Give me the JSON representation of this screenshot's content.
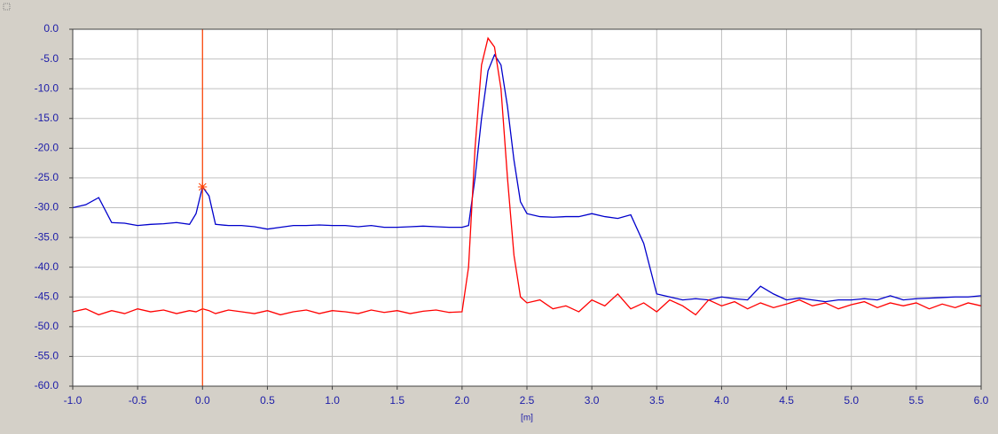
{
  "chart_data": {
    "type": "line",
    "x_label": "[m]",
    "x": [
      -1,
      -0.9,
      -0.8,
      -0.7,
      -0.6,
      -0.5,
      -0.4,
      -0.3,
      -0.2,
      -0.1,
      -0.05,
      0,
      0.05,
      0.1,
      0.2,
      0.3,
      0.4,
      0.5,
      0.6,
      0.7,
      0.8,
      0.9,
      1.0,
      1.1,
      1.2,
      1.3,
      1.4,
      1.5,
      1.6,
      1.7,
      1.8,
      1.9,
      2.0,
      2.05,
      2.1,
      2.15,
      2.2,
      2.25,
      2.3,
      2.35,
      2.4,
      2.45,
      2.5,
      2.6,
      2.7,
      2.8,
      2.9,
      3.0,
      3.1,
      3.2,
      3.3,
      3.4,
      3.5,
      3.6,
      3.7,
      3.8,
      3.9,
      4.0,
      4.1,
      4.2,
      4.3,
      4.4,
      4.5,
      4.6,
      4.7,
      4.8,
      4.9,
      5.0,
      5.1,
      5.2,
      5.3,
      5.4,
      5.5,
      5.6,
      5.7,
      5.8,
      5.9,
      6.0
    ],
    "series": [
      {
        "color": "#0000cc",
        "values": [
          -30,
          -29.5,
          -28.3,
          -32.5,
          -32.6,
          -33,
          -32.8,
          -32.7,
          -32.5,
          -32.8,
          -31,
          -26.5,
          -28,
          -32.8,
          -33,
          -33,
          -33.2,
          -33.6,
          -33.3,
          -33,
          -33,
          -32.9,
          -33,
          -33,
          -33.2,
          -33,
          -33.3,
          -33.3,
          -33.2,
          -33.1,
          -33.2,
          -33.3,
          -33.3,
          -33,
          -25,
          -15,
          -7,
          -4.3,
          -6,
          -13,
          -22,
          -29,
          -31,
          -31.5,
          -31.6,
          -31.5,
          -31.5,
          -31,
          -31.5,
          -31.8,
          -31.2,
          -36,
          -44.5,
          -45,
          -45.5,
          -45.3,
          -45.5,
          -45,
          -45.3,
          -45.5,
          -43.2,
          -44.5,
          -45.5,
          -45.2,
          -45.5,
          -45.8,
          -45.5,
          -45.5,
          -45.3,
          -45.5,
          -44.8,
          -45.5,
          -45.3,
          -45.2,
          -45.1,
          -45,
          -45,
          -44.8
        ]
      },
      {
        "color": "#ff0000",
        "values": [
          -47.5,
          -47,
          -48,
          -47.3,
          -47.8,
          -47,
          -47.5,
          -47.2,
          -47.8,
          -47.3,
          -47.5,
          -47,
          -47.3,
          -47.8,
          -47.2,
          -47.5,
          -47.8,
          -47.3,
          -48,
          -47.5,
          -47.2,
          -47.8,
          -47.3,
          -47.5,
          -47.8,
          -47.2,
          -47.6,
          -47.3,
          -47.8,
          -47.4,
          -47.2,
          -47.6,
          -47.5,
          -40,
          -20,
          -6,
          -1.5,
          -3,
          -10,
          -25,
          -38,
          -45,
          -46,
          -45.5,
          -47,
          -46.5,
          -47.5,
          -45.5,
          -46.5,
          -44.5,
          -47,
          -46,
          -47.5,
          -45.5,
          -46.5,
          -48,
          -45.5,
          -46.5,
          -45.8,
          -47,
          -46,
          -46.8,
          -46.2,
          -45.5,
          -46.5,
          -46,
          -47,
          -46.3,
          -45.8,
          -46.8,
          -46,
          -46.5,
          -46,
          -47,
          -46.2,
          -46.8,
          -46,
          -46.5
        ]
      }
    ],
    "cursor": {
      "x": 0,
      "color": "#ff4000"
    },
    "xlim": [
      -1,
      6
    ],
    "xticks": [
      {
        "value": -1,
        "label": "-1.0"
      },
      {
        "value": -0.5,
        "label": "-0.5"
      },
      {
        "value": 0,
        "label": "0.0"
      },
      {
        "value": 0.5,
        "label": "0.5"
      },
      {
        "value": 1,
        "label": "1.0"
      },
      {
        "value": 1.5,
        "label": "1.5"
      },
      {
        "value": 2,
        "label": "2.0"
      },
      {
        "value": 2.5,
        "label": "2.5"
      },
      {
        "value": 3,
        "label": "3.0"
      },
      {
        "value": 3.5,
        "label": "3.5"
      },
      {
        "value": 4,
        "label": "4.0"
      },
      {
        "value": 4.5,
        "label": "4.5"
      },
      {
        "value": 5,
        "label": "5.0"
      },
      {
        "value": 5.5,
        "label": "5.5"
      },
      {
        "value": 6,
        "label": "6.0"
      }
    ],
    "ylim": [
      -60,
      0
    ],
    "yticks": [
      {
        "value": 0,
        "label": "0.0"
      },
      {
        "value": -5,
        "label": "-5.0"
      },
      {
        "value": -10,
        "label": "-10.0"
      },
      {
        "value": -15,
        "label": "-15.0"
      },
      {
        "value": -20,
        "label": "-20.0"
      },
      {
        "value": -25,
        "label": "-25.0"
      },
      {
        "value": -30,
        "label": "-30.0"
      },
      {
        "value": -35,
        "label": "-35.0"
      },
      {
        "value": -40,
        "label": "-40.0"
      },
      {
        "value": -45,
        "label": "-45.0"
      },
      {
        "value": -50,
        "label": "-50.0"
      },
      {
        "value": -55,
        "label": "-55.0"
      },
      {
        "value": -60,
        "label": "-60.0"
      }
    ],
    "grid": true
  }
}
